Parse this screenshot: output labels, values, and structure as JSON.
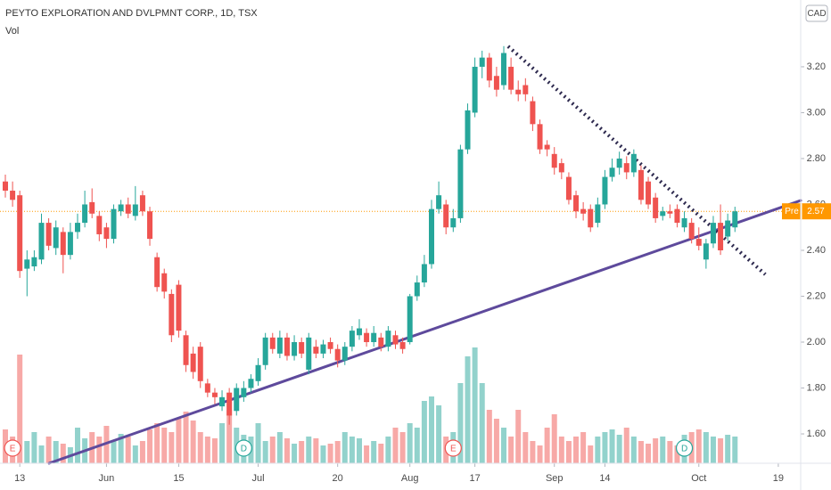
{
  "chart_data": {
    "type": "candlestick",
    "title": "PEYTO EXPLORATION AND DVLPMNT CORP., 1D, TSX",
    "subtitle": "Vol",
    "currency": "CAD",
    "up_color": "#26a69a",
    "down_color": "#ef5350",
    "open": [
      2.7,
      2.66,
      2.64,
      2.32,
      2.33,
      2.36,
      2.52,
      2.41,
      2.48,
      2.38,
      2.48,
      2.52,
      2.61,
      2.55,
      2.5,
      2.45,
      2.57,
      2.6,
      2.55,
      2.64,
      2.57,
      2.37,
      2.3,
      2.21,
      2.25,
      2.03,
      1.95,
      1.98,
      1.82,
      1.78,
      1.72,
      1.78,
      1.7,
      1.76,
      1.8,
      1.83,
      1.9,
      2.02,
      1.95,
      2.02,
      1.94,
      2.0,
      1.88,
      1.98,
      1.95,
      2.0,
      1.97,
      1.92,
      1.98,
      2.03,
      2.04,
      2.0,
      2.02,
      1.98,
      2.03,
      2.0,
      2.0,
      2.2,
      2.26,
      2.34,
      2.58,
      2.6,
      2.5,
      2.54,
      2.84,
      3.0,
      3.2,
      3.24,
      3.16,
      3.12,
      3.2,
      3.1,
      3.12,
      3.05,
      2.95,
      2.86,
      2.82,
      2.78,
      2.72,
      2.64,
      2.58,
      2.58,
      2.52,
      2.6,
      2.72,
      2.76,
      2.78,
      2.74,
      2.75,
      2.7,
      2.63,
      2.55,
      2.57,
      2.58,
      2.5,
      2.52,
      2.45,
      2.36,
      2.43,
      2.52,
      2.46,
      2.5
    ],
    "high": [
      2.73,
      2.7,
      2.66,
      2.4,
      2.4,
      2.56,
      2.54,
      2.53,
      2.5,
      2.52,
      2.56,
      2.66,
      2.67,
      2.57,
      2.52,
      2.6,
      2.62,
      2.63,
      2.68,
      2.66,
      2.59,
      2.39,
      2.32,
      2.23,
      2.27,
      2.05,
      1.98,
      2.0,
      1.84,
      1.8,
      1.79,
      1.8,
      1.82,
      1.83,
      1.86,
      1.93,
      2.04,
      2.04,
      2.05,
      2.04,
      2.03,
      2.02,
      2.04,
      2.01,
      2.01,
      2.02,
      1.99,
      2.0,
      2.07,
      2.1,
      2.06,
      2.07,
      2.04,
      2.07,
      2.05,
      2.02,
      2.21,
      2.29,
      2.38,
      2.62,
      2.7,
      2.62,
      2.58,
      2.86,
      3.04,
      3.24,
      3.27,
      3.26,
      3.2,
      3.29,
      3.24,
      3.14,
      3.15,
      3.07,
      2.97,
      2.88,
      2.85,
      2.8,
      2.74,
      2.66,
      2.61,
      2.6,
      2.63,
      2.75,
      2.8,
      2.83,
      2.81,
      2.84,
      2.77,
      2.72,
      2.65,
      2.59,
      2.6,
      2.6,
      2.57,
      2.54,
      2.5,
      2.45,
      2.55,
      2.6,
      2.56,
      2.59
    ],
    "low": [
      2.63,
      2.59,
      2.28,
      2.2,
      2.31,
      2.34,
      2.4,
      2.38,
      2.3,
      2.36,
      2.45,
      2.5,
      2.54,
      2.44,
      2.41,
      2.43,
      2.55,
      2.54,
      2.53,
      2.55,
      2.42,
      2.22,
      2.19,
      2.0,
      2.02,
      1.87,
      1.84,
      1.8,
      1.76,
      1.73,
      1.7,
      1.64,
      1.68,
      1.74,
      1.78,
      1.81,
      1.88,
      1.95,
      1.93,
      1.92,
      1.92,
      1.93,
      1.86,
      1.93,
      1.93,
      1.95,
      1.89,
      1.9,
      1.96,
      2.01,
      1.98,
      1.98,
      1.96,
      1.96,
      1.97,
      1.95,
      1.99,
      2.18,
      2.24,
      2.32,
      2.56,
      2.47,
      2.48,
      2.52,
      2.82,
      2.98,
      3.15,
      3.11,
      3.07,
      3.1,
      3.08,
      3.05,
      3.05,
      2.92,
      2.82,
      2.81,
      2.73,
      2.71,
      2.6,
      2.54,
      2.53,
      2.48,
      2.5,
      2.58,
      2.7,
      2.73,
      2.71,
      2.72,
      2.6,
      2.58,
      2.52,
      2.53,
      2.54,
      2.5,
      2.48,
      2.43,
      2.4,
      2.32,
      2.41,
      2.38,
      2.44,
      2.48
    ],
    "close": [
      2.66,
      2.62,
      2.31,
      2.36,
      2.37,
      2.52,
      2.42,
      2.5,
      2.38,
      2.48,
      2.52,
      2.6,
      2.56,
      2.47,
      2.45,
      2.58,
      2.6,
      2.56,
      2.6,
      2.57,
      2.45,
      2.24,
      2.22,
      2.03,
      2.05,
      1.9,
      1.87,
      1.83,
      1.78,
      1.76,
      1.76,
      1.68,
      1.8,
      1.8,
      1.84,
      1.9,
      2.02,
      1.97,
      2.02,
      1.94,
      2.0,
      1.95,
      2.02,
      1.95,
      1.99,
      1.97,
      1.92,
      1.98,
      2.05,
      2.06,
      2.0,
      2.04,
      1.98,
      2.05,
      1.99,
      1.97,
      2.2,
      2.26,
      2.34,
      2.58,
      2.64,
      2.5,
      2.54,
      2.84,
      3.01,
      3.2,
      3.24,
      3.14,
      3.1,
      3.26,
      3.1,
      3.08,
      3.08,
      2.95,
      2.84,
      2.84,
      2.76,
      2.74,
      2.62,
      2.57,
      2.56,
      2.5,
      2.6,
      2.72,
      2.76,
      2.8,
      2.74,
      2.82,
      2.62,
      2.6,
      2.54,
      2.57,
      2.56,
      2.52,
      2.54,
      2.45,
      2.42,
      2.43,
      2.52,
      2.4,
      2.53,
      2.57
    ],
    "volume": [
      38,
      30,
      122,
      25,
      35,
      20,
      30,
      25,
      22,
      18,
      40,
      28,
      35,
      30,
      42,
      25,
      33,
      30,
      20,
      25,
      38,
      45,
      40,
      35,
      50,
      58,
      48,
      35,
      30,
      28,
      45,
      60,
      40,
      32,
      30,
      45,
      25,
      30,
      35,
      28,
      22,
      25,
      30,
      28,
      20,
      22,
      25,
      35,
      30,
      28,
      20,
      25,
      22,
      30,
      40,
      35,
      45,
      40,
      70,
      75,
      65,
      30,
      35,
      90,
      120,
      130,
      90,
      60,
      50,
      40,
      30,
      60,
      35,
      25,
      20,
      40,
      55,
      30,
      25,
      30,
      35,
      20,
      30,
      35,
      38,
      32,
      40,
      30,
      25,
      22,
      28,
      30,
      25,
      20,
      32,
      35,
      38,
      35,
      30,
      28,
      32,
      30
    ],
    "xlim": [
      -0.74,
      110.1
    ],
    "xticks": [
      {
        "value": 2,
        "label": "13"
      },
      {
        "value": 14,
        "label": "Jun"
      },
      {
        "value": 24,
        "label": "15"
      },
      {
        "value": 35,
        "label": "Jul"
      },
      {
        "value": 46,
        "label": "20"
      },
      {
        "value": 56,
        "label": "Aug"
      },
      {
        "value": 65,
        "label": "17"
      },
      {
        "value": 76,
        "label": "Sep"
      },
      {
        "value": 83,
        "label": "14"
      },
      {
        "value": 96,
        "label": "Oct"
      },
      {
        "value": 107,
        "label": "19"
      }
    ],
    "ylim": [
      1.472,
      3.491
    ],
    "yticks": [
      {
        "value": 1.6,
        "label": "1.60"
      },
      {
        "value": 1.8,
        "label": "1.80"
      },
      {
        "value": 2.0,
        "label": "2.00"
      },
      {
        "value": 2.2,
        "label": "2.20"
      },
      {
        "value": 2.4,
        "label": "2.40"
      },
      {
        "value": 2.6,
        "label": "2.60"
      },
      {
        "value": 2.8,
        "label": "2.80"
      },
      {
        "value": 3.0,
        "label": "3.00"
      },
      {
        "value": 3.2,
        "label": "3.20"
      }
    ],
    "trendlines": [
      {
        "color": "#5e4a9c",
        "style": "solid",
        "x": [
          6.05,
          110.1
        ],
        "y": [
          1.472,
          2.617
        ]
      },
      {
        "color": "#2e2a4f",
        "style": "dotted",
        "x": [
          69.6,
          105.2
        ],
        "y": [
          3.289,
          2.295
        ]
      }
    ],
    "price_line": {
      "label": "Pre",
      "value": 2.57,
      "color": "#ff9800"
    },
    "events": [
      {
        "label": "E",
        "x": 1
      },
      {
        "label": "D",
        "x": 33
      },
      {
        "label": "E",
        "x": 62
      },
      {
        "label": "D",
        "x": 94
      }
    ]
  }
}
